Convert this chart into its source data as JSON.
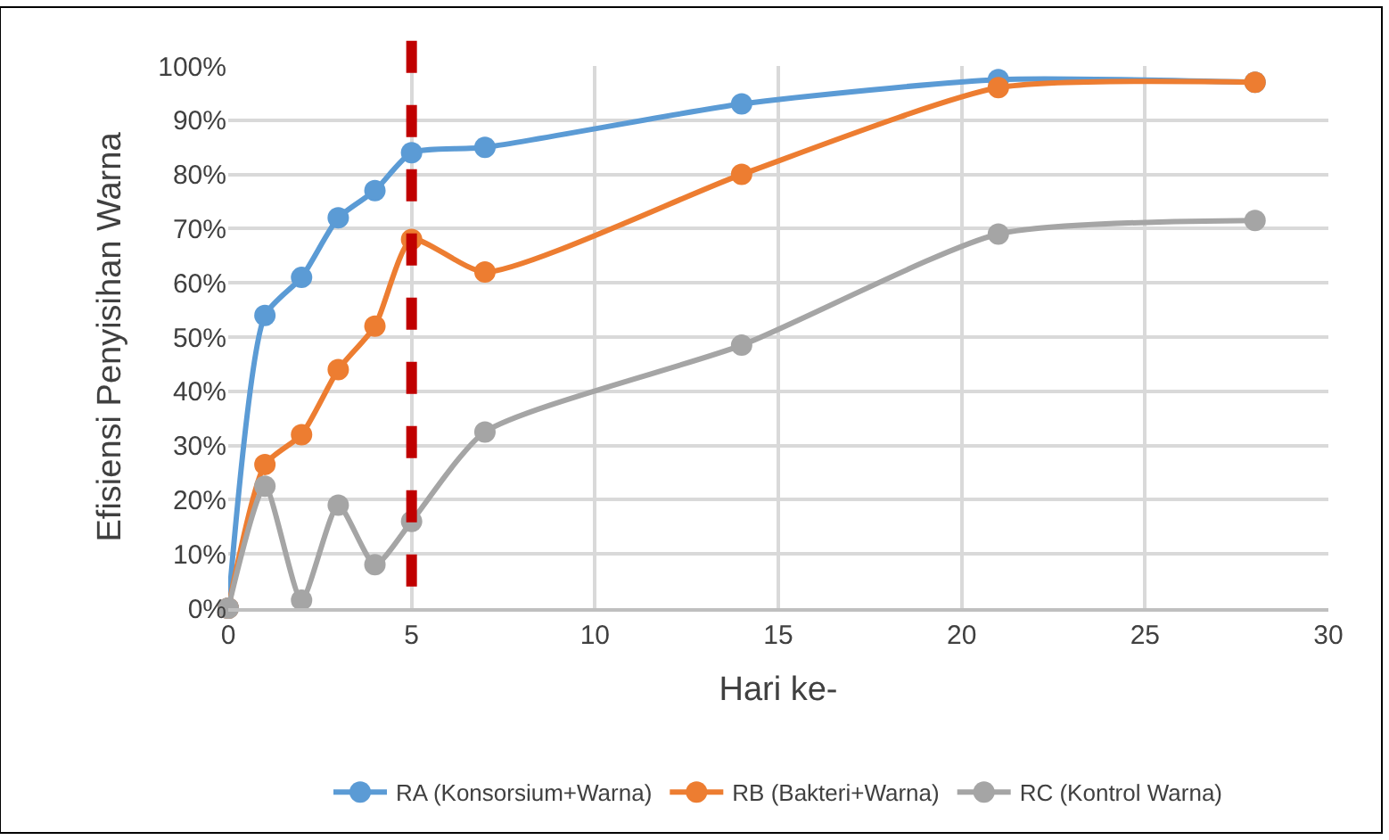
{
  "chart_data": {
    "type": "line",
    "xlabel": "Hari ke-",
    "ylabel": "Efisiensi Penyisihan Warna",
    "x": [
      0,
      1,
      2,
      3,
      4,
      5,
      7,
      14,
      21,
      28
    ],
    "series": [
      {
        "name": "RA (Konsorsium+Warna)",
        "color": "#5b9bd5",
        "values": [
          0,
          54,
          61,
          72,
          77,
          84,
          85,
          93,
          97.5,
          97
        ]
      },
      {
        "name": "RB (Bakteri+Warna)",
        "color": "#ed7d31",
        "values": [
          0,
          26.5,
          32,
          44,
          52,
          68,
          62,
          80,
          96,
          97
        ]
      },
      {
        "name": "RC (Kontrol Warna)",
        "color": "#a5a5a5",
        "values": [
          0,
          22.5,
          1.5,
          19,
          8,
          16,
          32.5,
          48.5,
          69,
          71.5
        ]
      }
    ],
    "xlim": [
      0,
      30
    ],
    "xticks": [
      0,
      5,
      10,
      15,
      20,
      25,
      30
    ],
    "ylim": [
      0,
      100
    ],
    "yticks": [
      {
        "value": 0,
        "label": "0%"
      },
      {
        "value": 10,
        "label": "10%"
      },
      {
        "value": 20,
        "label": "20%"
      },
      {
        "value": 30,
        "label": "30%"
      },
      {
        "value": 40,
        "label": "40%"
      },
      {
        "value": 50,
        "label": "50%"
      },
      {
        "value": 60,
        "label": "60%"
      },
      {
        "value": 70,
        "label": "70%"
      },
      {
        "value": 80,
        "label": "80%"
      },
      {
        "value": 90,
        "label": "90%"
      },
      {
        "value": 100,
        "label": "100%"
      }
    ],
    "ref_lines": [
      {
        "axis": "x",
        "value": 5,
        "color": "#c00000",
        "line_style": "dashed"
      }
    ],
    "grid": true,
    "legend": "bottom",
    "marker": "circle",
    "line_style": "solid"
  }
}
